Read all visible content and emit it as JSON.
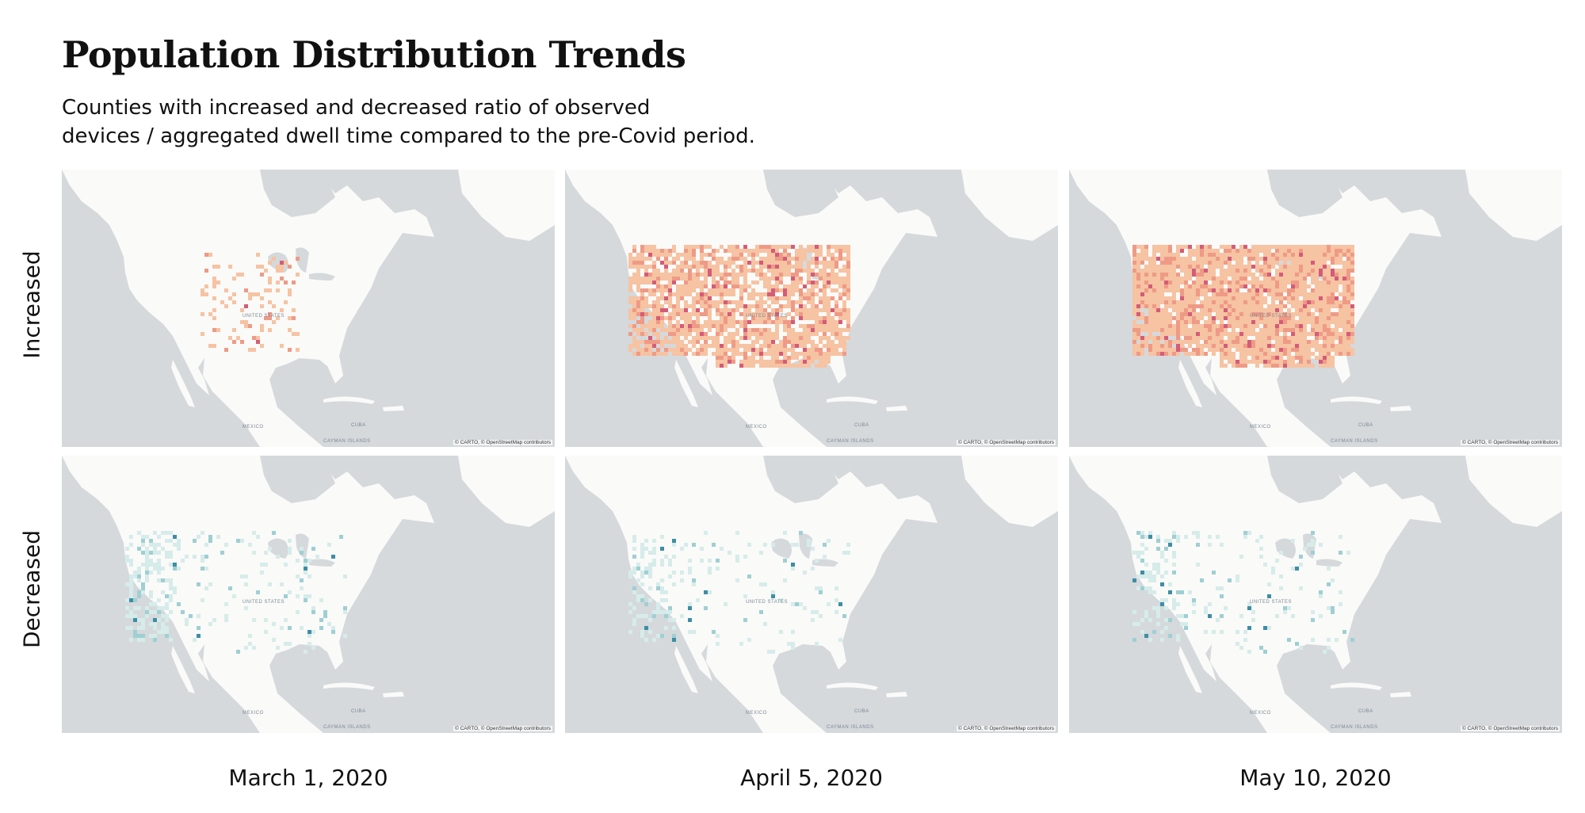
{
  "title": "Population Distribution Trends",
  "subtitle": {
    "line1": "Counties with increased and decreased ratio of observed",
    "line2": "devices / aggregated dwell time compared to the pre-Covid period."
  },
  "rows": [
    "Increased",
    "Decreased"
  ],
  "dates": [
    "March 1, 2020",
    "April 5, 2020",
    "May 10, 2020"
  ],
  "map_labels": {
    "usa": "UNITED STATES",
    "mexico": "MEXICO",
    "cuba": "CUBA",
    "cayman": "CAYMAN ISLANDS",
    "attribution": "© CARTO, © OpenStreetMap contributors"
  },
  "colors": {
    "increased_light": "#f6c3a3",
    "increased_mid": "#ef9a86",
    "increased_dark": "#d45c78",
    "decreased_light": "#d6ecea",
    "decreased_mid": "#9fcfd3",
    "decreased_dark": "#3d8ea5",
    "water": "#d5d9dc",
    "land": "#fafaf8"
  },
  "panels": [
    {
      "row": "increased",
      "date": "March 1, 2020",
      "intensity": 0.2
    },
    {
      "row": "increased",
      "date": "April 5, 2020",
      "intensity": 0.75
    },
    {
      "row": "increased",
      "date": "May 10, 2020",
      "intensity": 0.9
    },
    {
      "row": "decreased",
      "date": "March 1, 2020",
      "intensity": 0.6
    },
    {
      "row": "decreased",
      "date": "April 5, 2020",
      "intensity": 0.4
    },
    {
      "row": "decreased",
      "date": "May 10, 2020",
      "intensity": 0.45
    }
  ]
}
